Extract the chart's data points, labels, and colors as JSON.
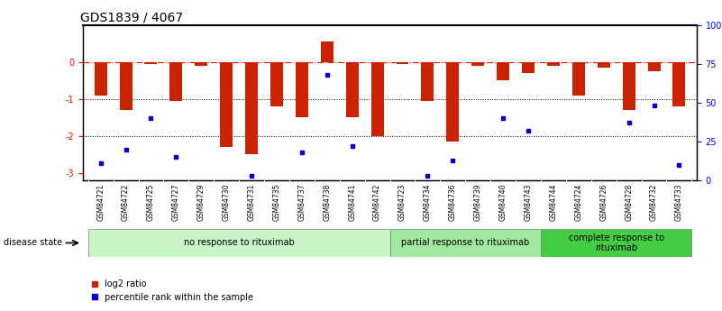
{
  "title": "GDS1839 / 4067",
  "samples": [
    "GSM84721",
    "GSM84722",
    "GSM84725",
    "GSM84727",
    "GSM84729",
    "GSM84730",
    "GSM84731",
    "GSM84735",
    "GSM84737",
    "GSM84738",
    "GSM84741",
    "GSM84742",
    "GSM84723",
    "GSM84734",
    "GSM84736",
    "GSM84739",
    "GSM84740",
    "GSM84743",
    "GSM84744",
    "GSM84724",
    "GSM84726",
    "GSM84728",
    "GSM84732",
    "GSM84733"
  ],
  "log2_ratio": [
    -0.9,
    -1.3,
    -0.05,
    -1.05,
    -0.1,
    -2.3,
    -2.5,
    -1.2,
    -1.5,
    0.55,
    -1.5,
    -2.0,
    -0.05,
    -1.05,
    -2.15,
    -0.1,
    -0.5,
    -0.3,
    -0.1,
    -0.9,
    -0.15,
    -1.3,
    -0.25,
    -1.2
  ],
  "percentile_rank": [
    11,
    20,
    40,
    15,
    null,
    null,
    3,
    null,
    18,
    68,
    22,
    null,
    null,
    3,
    13,
    null,
    40,
    32,
    null,
    null,
    null,
    37,
    48,
    10
  ],
  "group_info": [
    {
      "start": 0,
      "end": 12,
      "label": "no response to rituximab",
      "color": "#c8f5c8"
    },
    {
      "start": 12,
      "end": 18,
      "label": "partial response to rituximab",
      "color": "#a0e8a0"
    },
    {
      "start": 18,
      "end": 24,
      "label": "complete response to\nrituximab",
      "color": "#44cc44"
    }
  ],
  "ylim_left": [
    -3.2,
    1.0
  ],
  "ylim_right": [
    0,
    100
  ],
  "yticks_left": [
    -3,
    -2,
    -1,
    0
  ],
  "yticks_right": [
    0,
    25,
    50,
    75,
    100
  ],
  "ytick_labels_right": [
    "0",
    "25",
    "50",
    "75",
    "100%"
  ],
  "hline_y": 0,
  "dotted_hlines": [
    -1,
    -2
  ],
  "bar_color": "#cc2200",
  "dot_color": "#0000cc",
  "bar_width": 0.5,
  "title_fontsize": 10,
  "tick_fontsize": 7,
  "label_fontsize": 7
}
